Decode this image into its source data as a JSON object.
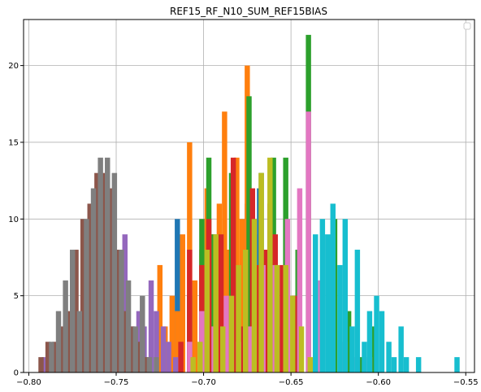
{
  "chart_data": {
    "type": "bar",
    "title": "REF15_RF_N10_SUM_REF15BIAS",
    "xlabel": "",
    "ylabel": "",
    "xlim": [
      -0.803,
      -0.545
    ],
    "ylim": [
      0,
      23
    ],
    "xticks": [
      -0.8,
      -0.75,
      -0.7,
      -0.65,
      -0.6,
      -0.55
    ],
    "xtick_labels": [
      "−0.80",
      "−0.75",
      "−0.70",
      "−0.65",
      "−0.60",
      "−0.55"
    ],
    "yticks": [
      0,
      5,
      10,
      15,
      20
    ],
    "ytick_labels": [
      "0",
      "5",
      "10",
      "15",
      "20"
    ],
    "grid": true,
    "legend": "top-right (empty)",
    "series": [
      {
        "color": "#1f77b4",
        "bin_width": 0.003,
        "x": [
          -0.715,
          -0.712,
          -0.708,
          -0.705,
          -0.701,
          -0.698,
          -0.695,
          -0.691,
          -0.688,
          -0.685,
          -0.681,
          -0.678,
          -0.675,
          -0.671,
          -0.668,
          -0.664,
          -0.661,
          -0.658,
          -0.654
        ],
        "values": [
          10,
          4,
          2,
          1,
          7,
          6,
          3,
          5,
          4,
          8,
          3,
          6,
          11,
          9,
          12,
          7,
          5,
          3,
          1
        ]
      },
      {
        "color": "#ff7f0e",
        "bin_width": 0.003,
        "x": [
          -0.725,
          -0.722,
          -0.718,
          -0.715,
          -0.712,
          -0.708,
          -0.705,
          -0.701,
          -0.698,
          -0.695,
          -0.691,
          -0.688,
          -0.685,
          -0.681,
          -0.678,
          -0.675,
          -0.671
        ],
        "values": [
          7,
          3,
          5,
          4,
          9,
          15,
          6,
          8,
          12,
          9,
          11,
          17,
          8,
          14,
          10,
          20,
          5
        ]
      },
      {
        "color": "#2ca02c",
        "bin_width": 0.003,
        "x": [
          -0.708,
          -0.701,
          -0.697,
          -0.694,
          -0.684,
          -0.674,
          -0.667,
          -0.66,
          -0.653,
          -0.646,
          -0.64,
          -0.625,
          -0.617,
          -0.61,
          -0.603
        ],
        "values": [
          5,
          10,
          14,
          9,
          13,
          18,
          13,
          14,
          14,
          8,
          22,
          10,
          4,
          1,
          3
        ]
      },
      {
        "color": "#d62728",
        "bin_width": 0.003,
        "x": [
          -0.713,
          -0.708,
          -0.701,
          -0.697,
          -0.69,
          -0.683,
          -0.679,
          -0.676,
          -0.672,
          -0.669,
          -0.665,
          -0.662,
          -0.659,
          -0.655,
          -0.652,
          -0.648
        ],
        "values": [
          2,
          8,
          7,
          10,
          9,
          14,
          3,
          7,
          12,
          7,
          8,
          11,
          9,
          7,
          6,
          5
        ]
      },
      {
        "color": "#9467bd",
        "bin_width": 0.003,
        "x": [
          -0.791,
          -0.782,
          -0.778,
          -0.773,
          -0.769,
          -0.764,
          -0.76,
          -0.756,
          -0.752,
          -0.749,
          -0.745,
          -0.741,
          -0.737,
          -0.734,
          -0.73,
          -0.727,
          -0.723,
          -0.72,
          -0.716
        ],
        "values": [
          1,
          2,
          1,
          3,
          5,
          4,
          7,
          8,
          8,
          4,
          9,
          3,
          4,
          3,
          6,
          4,
          3,
          2,
          1
        ]
      },
      {
        "color": "#8c564b",
        "bin_width": 0.003,
        "x": [
          -0.793,
          -0.789,
          -0.785,
          -0.781,
          -0.777,
          -0.773,
          -0.769,
          -0.765,
          -0.761,
          -0.757,
          -0.753,
          -0.749,
          -0.745,
          -0.741,
          -0.737,
          -0.733
        ],
        "values": [
          1,
          2,
          2,
          3,
          4,
          8,
          10,
          11,
          13,
          13,
          12,
          8,
          4,
          3,
          2,
          1
        ]
      },
      {
        "color": "#e377c2",
        "bin_width": 0.003,
        "x": [
          -0.708,
          -0.701,
          -0.694,
          -0.687,
          -0.68,
          -0.673,
          -0.666,
          -0.659,
          -0.652,
          -0.645,
          -0.64,
          -0.633,
          -0.626,
          -0.619,
          -0.612,
          -0.605
        ],
        "values": [
          2,
          4,
          3,
          5,
          2,
          3,
          7,
          7,
          10,
          12,
          17,
          6,
          9,
          2,
          1,
          1
        ]
      },
      {
        "color": "#7f7f7f",
        "bin_width": 0.003,
        "x": [
          -0.787,
          -0.783,
          -0.779,
          -0.775,
          -0.771,
          -0.767,
          -0.763,
          -0.759,
          -0.755,
          -0.751,
          -0.747,
          -0.743,
          -0.739,
          -0.735,
          -0.731,
          -0.727
        ],
        "values": [
          2,
          4,
          6,
          8,
          4,
          10,
          12,
          14,
          14,
          13,
          8,
          6,
          3,
          5,
          1,
          1
        ]
      },
      {
        "color": "#bcbd22",
        "bin_width": 0.003,
        "x": [
          -0.706,
          -0.702,
          -0.698,
          -0.693,
          -0.689,
          -0.684,
          -0.68,
          -0.676,
          -0.671,
          -0.667,
          -0.662,
          -0.658,
          -0.653,
          -0.649,
          -0.644,
          -0.639
        ],
        "values": [
          1,
          2,
          8,
          9,
          3,
          5,
          7,
          8,
          10,
          13,
          14,
          7,
          7,
          5,
          3,
          1
        ]
      },
      {
        "color": "#17becf",
        "bin_width": 0.003,
        "x": [
          -0.636,
          -0.632,
          -0.629,
          -0.626,
          -0.622,
          -0.619,
          -0.615,
          -0.612,
          -0.608,
          -0.605,
          -0.601,
          -0.598,
          -0.594,
          -0.591,
          -0.587,
          -0.584,
          -0.577,
          -0.555
        ],
        "values": [
          9,
          10,
          9,
          11,
          7,
          10,
          3,
          8,
          2,
          4,
          5,
          4,
          2,
          1,
          3,
          1,
          1,
          1
        ]
      }
    ]
  }
}
